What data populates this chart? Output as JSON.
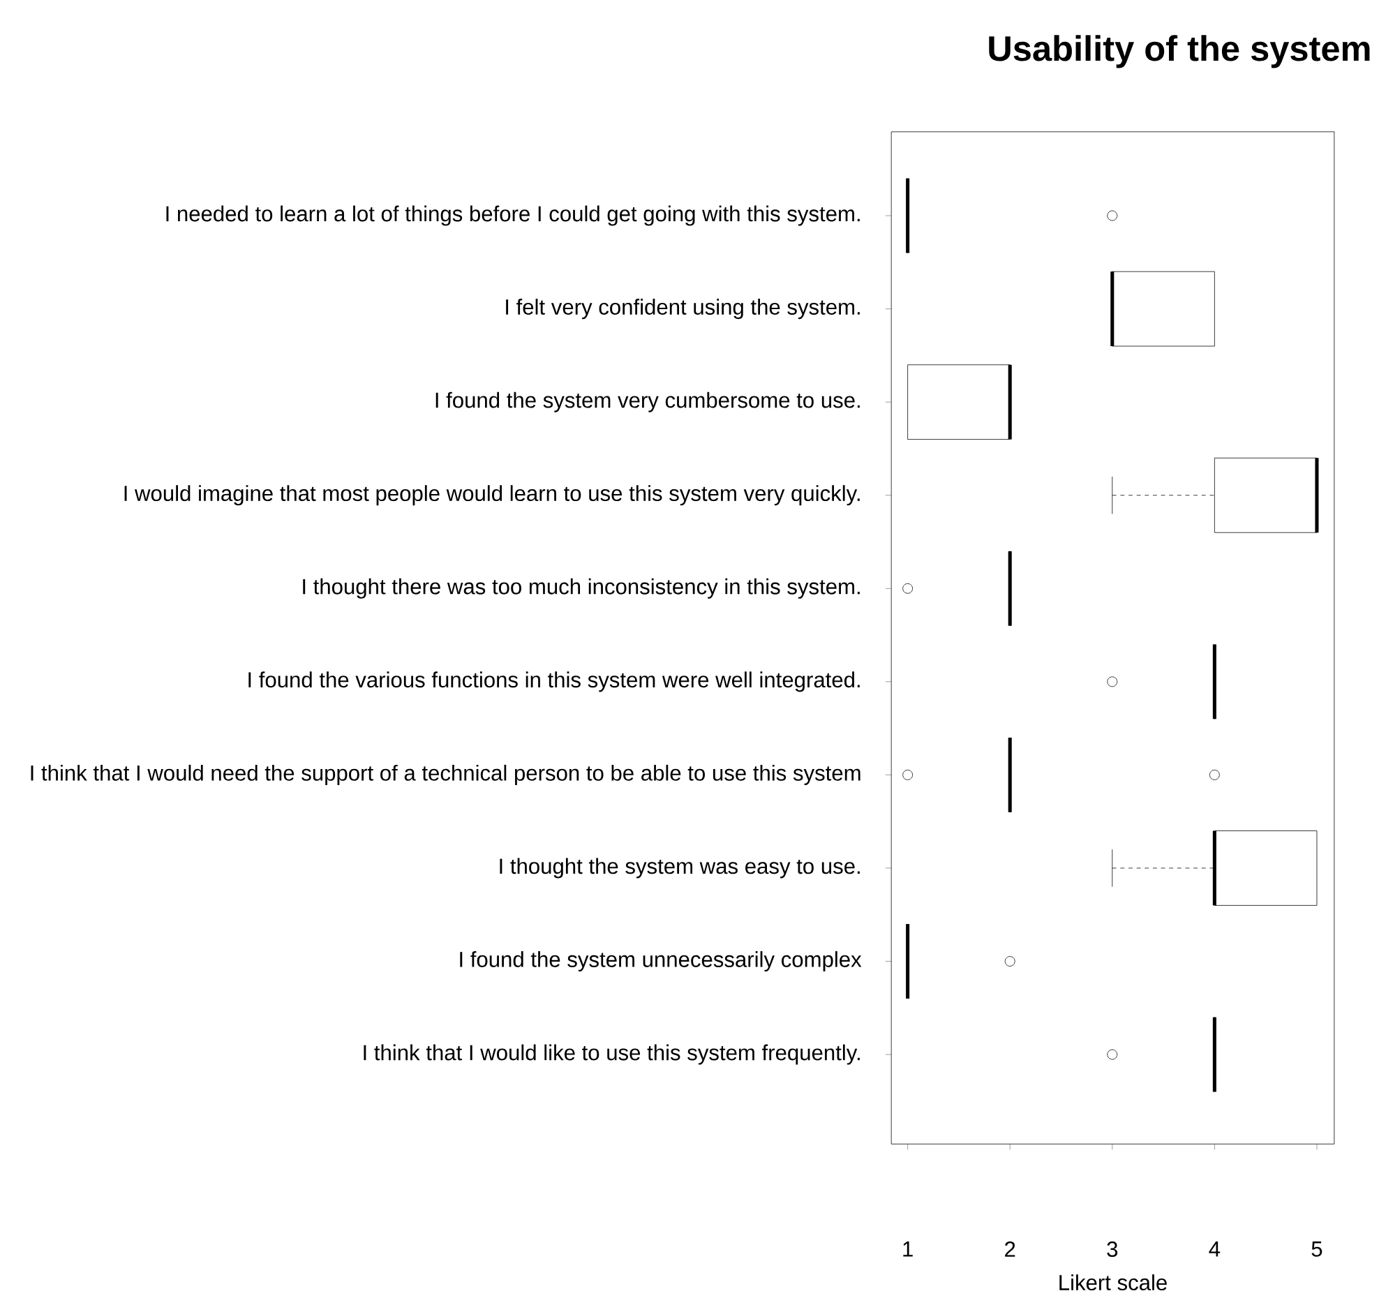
{
  "chart_data": {
    "type": "box",
    "orientation": "horizontal",
    "title": "Usability of the system",
    "xlabel": "Likert scale",
    "categories": [
      "I needed to learn a lot of things before I could get going with this system.",
      "I felt very confident using the system.",
      "I found the system very cumbersome to use.",
      "I would imagine that most people would learn to use this system very quickly.",
      "I thought there was too much inconsistency in this system.",
      "I found the various functions in this system were well integrated.",
      "I think that I would need the support of a technical person to be able to use this system",
      "I thought the system was easy to use.",
      "I found the system unnecessarily complex",
      "I think that I would like to use this system frequently."
    ],
    "boxes": [
      {
        "low": 1,
        "q1": 1,
        "median": 1,
        "q3": 1,
        "high": 1,
        "outliers": [
          3
        ]
      },
      {
        "low": 3,
        "q1": 3,
        "median": 3,
        "q3": 4,
        "high": 4
      },
      {
        "low": 1,
        "q1": 1,
        "median": 2,
        "q3": 2,
        "high": 2
      },
      {
        "low": 3,
        "q1": 4,
        "median": 5,
        "q3": 5,
        "high": 5
      },
      {
        "low": 2,
        "q1": 2,
        "median": 2,
        "q3": 2,
        "high": 2,
        "outliers": [
          1
        ]
      },
      {
        "low": 4,
        "q1": 4,
        "median": 4,
        "q3": 4,
        "high": 4,
        "outliers": [
          3
        ]
      },
      {
        "low": 2,
        "q1": 2,
        "median": 2,
        "q3": 2,
        "high": 2,
        "outliers": [
          1,
          4
        ]
      },
      {
        "low": 3,
        "q1": 4,
        "median": 4,
        "q3": 5,
        "high": 5
      },
      {
        "low": 1,
        "q1": 1,
        "median": 1,
        "q3": 1,
        "high": 1,
        "outliers": [
          2
        ]
      },
      {
        "low": 4,
        "q1": 4,
        "median": 4,
        "q3": 4,
        "high": 4,
        "outliers": [
          3
        ]
      }
    ],
    "xlim": [
      0.84,
      5.17
    ],
    "xticks": [
      1,
      2,
      3,
      4,
      5
    ]
  }
}
